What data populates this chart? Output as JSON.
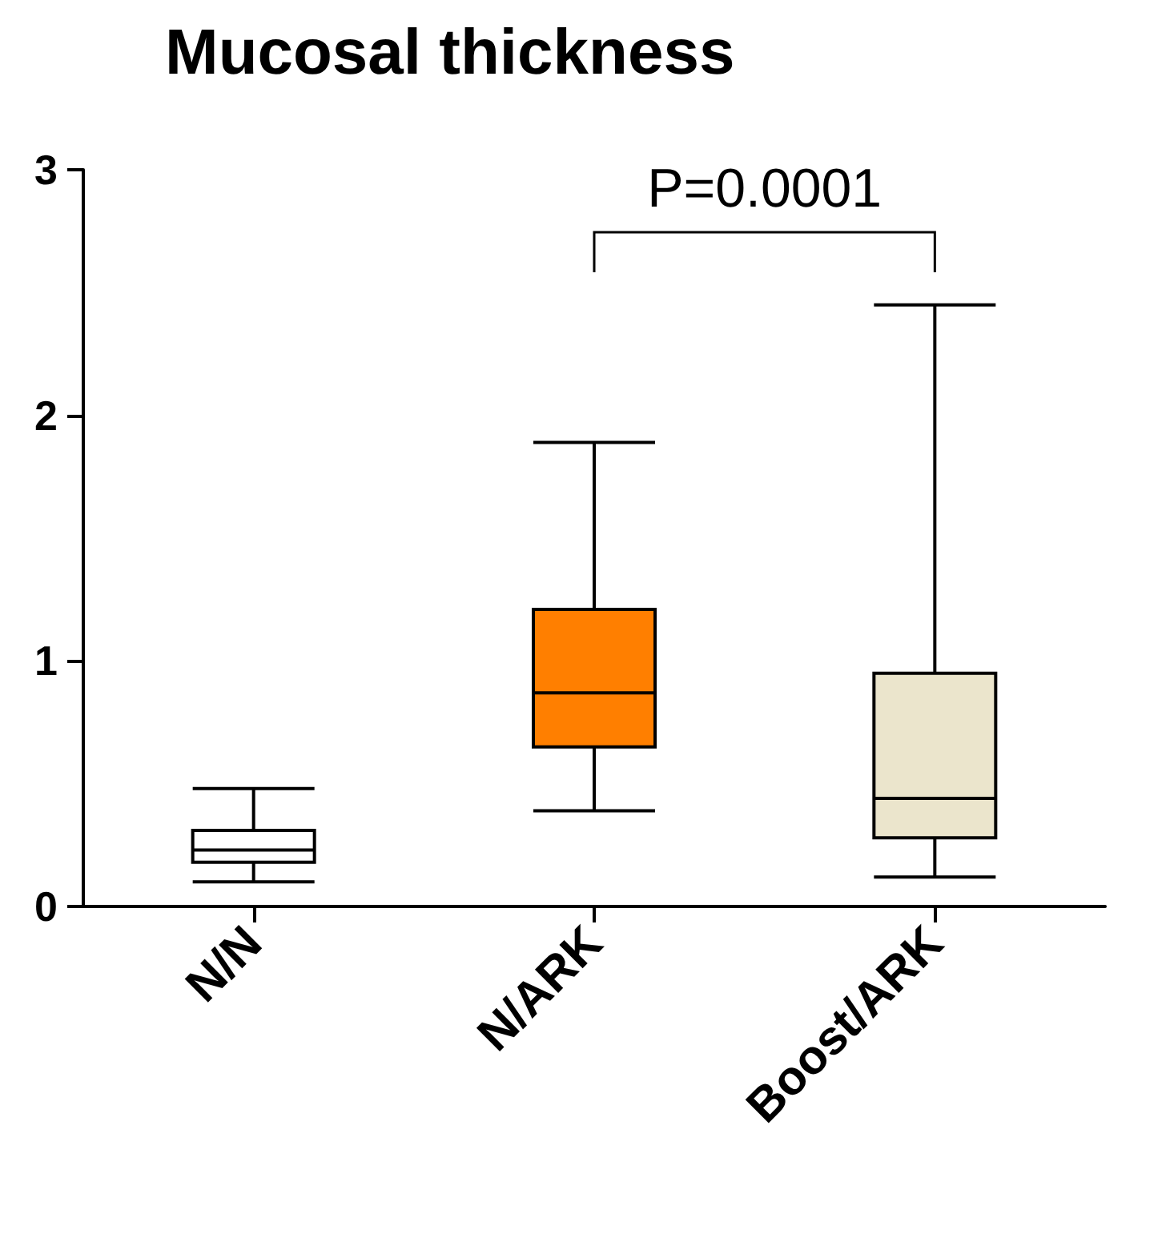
{
  "chart_data": {
    "type": "box",
    "title": "Mucosal thickness",
    "categories": [
      "N/N",
      "N/ARK",
      "Boost/ARK"
    ],
    "boxes": [
      {
        "low": 0.1,
        "q1": 0.18,
        "median": 0.23,
        "q3": 0.31,
        "high": 0.48
      },
      {
        "low": 0.39,
        "q1": 0.65,
        "median": 0.87,
        "q3": 1.21,
        "high": 1.89
      },
      {
        "low": 0.12,
        "q1": 0.28,
        "median": 0.44,
        "q3": 0.95,
        "high": 2.45
      }
    ],
    "colors": [
      "#ffffff",
      "#ff7f00",
      "#ebe5cc"
    ],
    "ylim": [
      0,
      3
    ],
    "yticks": [
      0,
      1,
      2,
      3
    ],
    "grid": false,
    "annotations": [
      "P=0.0001"
    ]
  }
}
